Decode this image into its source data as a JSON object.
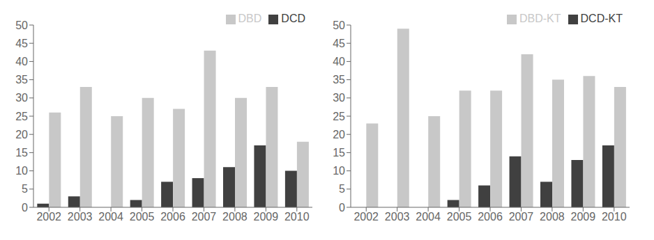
{
  "chart_data": [
    {
      "type": "bar",
      "categories": [
        "2002",
        "2003",
        "2004",
        "2005",
        "2006",
        "2007",
        "2008",
        "2009",
        "2010"
      ],
      "series": [
        {
          "name": "DCD",
          "color": "#404040",
          "values": [
            1,
            3,
            0,
            2,
            7,
            8,
            11,
            17,
            10
          ]
        },
        {
          "name": "DBD",
          "color": "#c8c8c8",
          "values": [
            26,
            33,
            25,
            30,
            27,
            43,
            30,
            33,
            18
          ]
        }
      ],
      "ylim": [
        0,
        50
      ],
      "yticks": [
        0,
        5,
        10,
        15,
        20,
        25,
        30,
        35,
        40,
        45,
        50
      ],
      "legend": "upper right",
      "grid": false
    },
    {
      "type": "bar",
      "categories": [
        "2002",
        "2003",
        "2004",
        "2005",
        "2006",
        "2007",
        "2008",
        "2009",
        "2010"
      ],
      "series": [
        {
          "name": "DCD-KT",
          "color": "#404040",
          "values": [
            0,
            0,
            0,
            2,
            6,
            14,
            7,
            13,
            17
          ]
        },
        {
          "name": "DBD-KT",
          "color": "#c8c8c8",
          "values": [
            23,
            49,
            25,
            32,
            32,
            42,
            35,
            36,
            33
          ]
        }
      ],
      "ylim": [
        0,
        50
      ],
      "yticks": [
        0,
        5,
        10,
        15,
        20,
        25,
        30,
        35,
        40,
        45,
        50
      ],
      "legend": "upper right",
      "grid": false
    }
  ]
}
